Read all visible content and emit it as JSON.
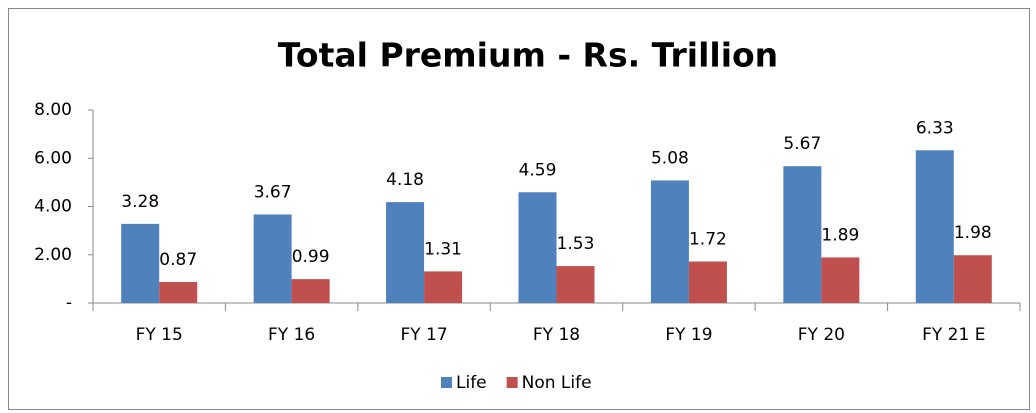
{
  "chart_data": {
    "type": "bar",
    "title": "Total Premium - Rs. Trillion",
    "categories": [
      "FY 15",
      "FY 16",
      "FY 17",
      "FY 18",
      "FY 19",
      "FY 20",
      "FY 21 E"
    ],
    "series": [
      {
        "name": "Life",
        "color": "#4f81bd",
        "values": [
          3.28,
          3.67,
          4.18,
          4.59,
          5.08,
          5.67,
          6.33
        ]
      },
      {
        "name": "Non Life",
        "color": "#c0504d",
        "values": [
          0.87,
          0.99,
          1.31,
          1.53,
          1.72,
          1.89,
          1.98
        ]
      }
    ],
    "ylim": [
      0,
      8
    ],
    "yticks": [
      {
        "value": 0,
        "label": "-"
      },
      {
        "value": 2,
        "label": "2.00"
      },
      {
        "value": 4,
        "label": "4.00"
      },
      {
        "value": 6,
        "label": "6.00"
      },
      {
        "value": 8,
        "label": "8.00"
      }
    ],
    "grid": false,
    "legend": "bottom"
  }
}
